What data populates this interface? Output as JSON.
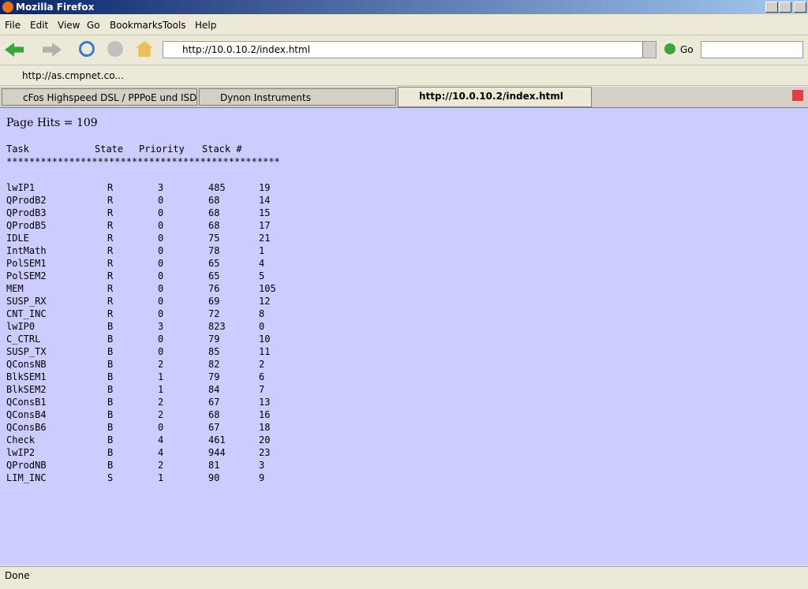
{
  "window": {
    "title": "Mozilla Firefox"
  },
  "menu": [
    "File",
    "Edit",
    "View",
    "Go",
    "Bookmarks",
    "Tools",
    "Help"
  ],
  "toolbar": {
    "url": "http://10.0.10.2/index.html",
    "go": "Go"
  },
  "bookmarks": [
    "http://as.cmpnet.co..."
  ],
  "tabs": [
    "cFos Highspeed DSL / PPPoE und ISDN CAP...",
    "Dynon Instruments",
    "http://10.0.10.2/index.html"
  ],
  "page": {
    "hits": "Page Hits = 109",
    "header": [
      "Task",
      "State",
      "Priority",
      "Stack #"
    ],
    "separator": "************************************************",
    "rows": [
      [
        "lwIP1",
        "R",
        "3",
        "485",
        "19"
      ],
      [
        "QProdB2",
        "R",
        "0",
        "68",
        "14"
      ],
      [
        "QProdB3",
        "R",
        "0",
        "68",
        "15"
      ],
      [
        "QProdB5",
        "R",
        "0",
        "68",
        "17"
      ],
      [
        "IDLE",
        "R",
        "0",
        "75",
        "21"
      ],
      [
        "IntMath",
        "R",
        "0",
        "78",
        "1"
      ],
      [
        "PolSEM1",
        "R",
        "0",
        "65",
        "4"
      ],
      [
        "PolSEM2",
        "R",
        "0",
        "65",
        "5"
      ],
      [
        "MEM",
        "R",
        "0",
        "76",
        "105"
      ],
      [
        "SUSP_RX",
        "R",
        "0",
        "69",
        "12"
      ],
      [
        "CNT_INC",
        "R",
        "0",
        "72",
        "8"
      ],
      [
        "lwIP0",
        "B",
        "3",
        "823",
        "0"
      ],
      [
        "C_CTRL",
        "B",
        "0",
        "79",
        "10"
      ],
      [
        "SUSP_TX",
        "B",
        "0",
        "85",
        "11"
      ],
      [
        "QConsNB",
        "B",
        "2",
        "82",
        "2"
      ],
      [
        "BlkSEM1",
        "B",
        "1",
        "79",
        "6"
      ],
      [
        "BlkSEM2",
        "B",
        "1",
        "84",
        "7"
      ],
      [
        "QConsB1",
        "B",
        "2",
        "67",
        "13"
      ],
      [
        "QConsB4",
        "B",
        "2",
        "68",
        "16"
      ],
      [
        "QConsB6",
        "B",
        "0",
        "67",
        "18"
      ],
      [
        "Check",
        "B",
        "4",
        "461",
        "20"
      ],
      [
        "lwIP2",
        "B",
        "4",
        "944",
        "23"
      ],
      [
        "QProdNB",
        "B",
        "2",
        "81",
        "3"
      ],
      [
        "LIM_INC",
        "S",
        "1",
        "90",
        "9"
      ]
    ]
  },
  "status": "Done"
}
